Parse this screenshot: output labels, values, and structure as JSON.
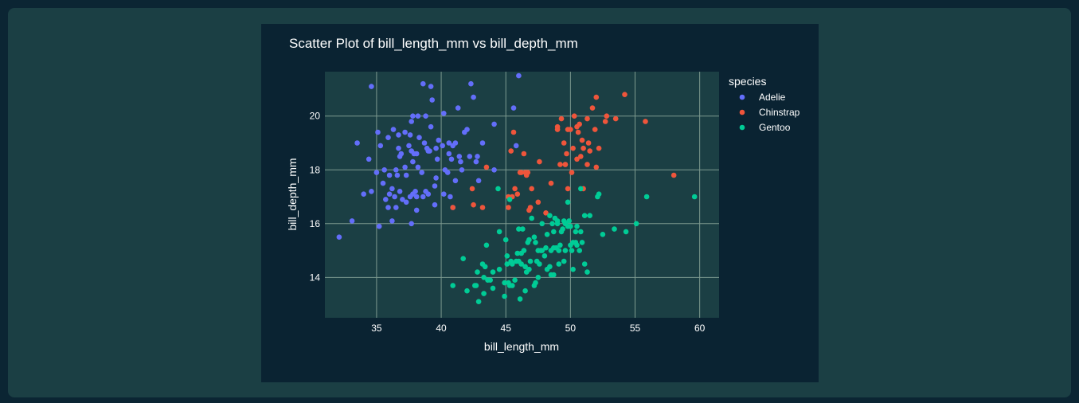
{
  "chart_data": {
    "type": "scatter",
    "title": "Scatter Plot of bill_length_mm vs bill_depth_mm",
    "xlabel": "bill_length_mm",
    "ylabel": "bill_depth_mm",
    "xlim": [
      31.0,
      61.5
    ],
    "ylim": [
      12.5,
      21.65
    ],
    "xticks": [
      35,
      40,
      45,
      50,
      55,
      60
    ],
    "yticks": [
      14,
      16,
      18,
      20
    ],
    "grid": true,
    "legend_title": "species",
    "legend_position": "right",
    "series": [
      {
        "name": "Adelie",
        "color": "#636efa",
        "points": [
          [
            32.1,
            15.5
          ],
          [
            33.1,
            16.1
          ],
          [
            33.5,
            19.0
          ],
          [
            34.0,
            17.1
          ],
          [
            34.4,
            18.4
          ],
          [
            34.6,
            21.1
          ],
          [
            34.6,
            17.2
          ],
          [
            35.0,
            17.9
          ],
          [
            35.1,
            19.4
          ],
          [
            35.2,
            15.9
          ],
          [
            35.3,
            18.9
          ],
          [
            35.5,
            17.5
          ],
          [
            35.6,
            18.0
          ],
          [
            35.7,
            16.9
          ],
          [
            35.9,
            16.6
          ],
          [
            35.9,
            19.2
          ],
          [
            36.0,
            17.8
          ],
          [
            36.0,
            17.1
          ],
          [
            36.2,
            17.3
          ],
          [
            36.2,
            16.1
          ],
          [
            36.3,
            19.5
          ],
          [
            36.4,
            17.0
          ],
          [
            36.5,
            18.0
          ],
          [
            36.5,
            16.6
          ],
          [
            36.6,
            17.8
          ],
          [
            36.7,
            19.3
          ],
          [
            36.7,
            18.8
          ],
          [
            36.8,
            18.5
          ],
          [
            36.9,
            18.6
          ],
          [
            37.0,
            16.9
          ],
          [
            37.2,
            18.1
          ],
          [
            37.2,
            19.4
          ],
          [
            37.3,
            17.8
          ],
          [
            37.3,
            16.8
          ],
          [
            37.5,
            18.9
          ],
          [
            37.6,
            17.0
          ],
          [
            37.6,
            19.3
          ],
          [
            37.7,
            18.7
          ],
          [
            37.7,
            16.0
          ],
          [
            37.8,
            17.1
          ],
          [
            37.8,
            18.3
          ],
          [
            37.8,
            20.0
          ],
          [
            37.9,
            18.6
          ],
          [
            38.1,
            18.6
          ],
          [
            38.1,
            17.0
          ],
          [
            38.1,
            16.5
          ],
          [
            38.2,
            18.1
          ],
          [
            38.2,
            20.0
          ],
          [
            38.3,
            19.2
          ],
          [
            38.5,
            17.9
          ],
          [
            38.6,
            21.2
          ],
          [
            38.6,
            17.0
          ],
          [
            38.7,
            19.0
          ],
          [
            38.8,
            17.2
          ],
          [
            38.8,
            20.0
          ],
          [
            38.9,
            18.8
          ],
          [
            39.0,
            17.1
          ],
          [
            39.0,
            18.7
          ],
          [
            39.1,
            18.7
          ],
          [
            39.2,
            19.6
          ],
          [
            39.2,
            21.1
          ],
          [
            39.3,
            20.6
          ],
          [
            39.5,
            17.4
          ],
          [
            39.5,
            16.7
          ],
          [
            39.6,
            17.7
          ],
          [
            39.6,
            18.8
          ],
          [
            39.7,
            18.4
          ],
          [
            39.8,
            19.1
          ],
          [
            40.1,
            18.9
          ],
          [
            40.2,
            17.1
          ],
          [
            40.2,
            20.1
          ],
          [
            40.3,
            18.0
          ],
          [
            40.5,
            17.9
          ],
          [
            40.6,
            18.6
          ],
          [
            40.6,
            19.0
          ],
          [
            40.7,
            17.0
          ],
          [
            40.8,
            18.4
          ],
          [
            40.9,
            16.6
          ],
          [
            41.1,
            17.6
          ],
          [
            41.1,
            19.0
          ],
          [
            41.3,
            20.3
          ],
          [
            41.4,
            18.5
          ],
          [
            41.5,
            18.3
          ],
          [
            41.6,
            18.0
          ],
          [
            41.8,
            19.4
          ],
          [
            42.0,
            19.5
          ],
          [
            42.2,
            18.5
          ],
          [
            42.3,
            21.2
          ],
          [
            42.5,
            20.7
          ],
          [
            42.7,
            18.3
          ],
          [
            42.8,
            18.5
          ],
          [
            42.9,
            17.6
          ],
          [
            43.2,
            19.0
          ],
          [
            44.1,
            19.7
          ],
          [
            44.1,
            18.0
          ],
          [
            45.6,
            20.3
          ],
          [
            45.8,
            18.9
          ],
          [
            46.0,
            21.5
          ],
          [
            37.7,
            19.8
          ],
          [
            38.0,
            17.2
          ],
          [
            36.8,
            17.2
          ],
          [
            40.9,
            18.9
          ]
        ]
      },
      {
        "name": "Chinstrap",
        "color": "#ef553b",
        "points": [
          [
            40.9,
            16.6
          ],
          [
            42.4,
            17.3
          ],
          [
            42.5,
            16.7
          ],
          [
            43.2,
            16.6
          ],
          [
            43.5,
            18.1
          ],
          [
            45.2,
            16.6
          ],
          [
            45.2,
            17.0
          ],
          [
            45.4,
            18.7
          ],
          [
            45.5,
            17.0
          ],
          [
            45.6,
            19.4
          ],
          [
            45.7,
            17.3
          ],
          [
            45.9,
            17.1
          ],
          [
            46.1,
            17.9
          ],
          [
            46.2,
            17.9
          ],
          [
            46.4,
            18.6
          ],
          [
            46.5,
            17.9
          ],
          [
            46.6,
            17.8
          ],
          [
            46.7,
            17.9
          ],
          [
            46.8,
            16.5
          ],
          [
            46.9,
            16.6
          ],
          [
            47.0,
            17.3
          ],
          [
            47.5,
            16.8
          ],
          [
            47.6,
            18.3
          ],
          [
            48.1,
            16.4
          ],
          [
            48.5,
            17.5
          ],
          [
            49.0,
            19.5
          ],
          [
            49.0,
            19.6
          ],
          [
            49.2,
            18.2
          ],
          [
            49.3,
            19.9
          ],
          [
            49.5,
            19.0
          ],
          [
            49.6,
            18.2
          ],
          [
            49.7,
            18.6
          ],
          [
            49.8,
            17.3
          ],
          [
            49.8,
            19.5
          ],
          [
            50.0,
            19.5
          ],
          [
            50.1,
            17.9
          ],
          [
            50.2,
            18.8
          ],
          [
            50.3,
            20.0
          ],
          [
            50.5,
            18.4
          ],
          [
            50.6,
            19.4
          ],
          [
            50.7,
            19.7
          ],
          [
            50.8,
            18.5
          ],
          [
            50.9,
            19.1
          ],
          [
            51.0,
            18.8
          ],
          [
            51.3,
            19.9
          ],
          [
            51.3,
            18.2
          ],
          [
            51.4,
            19.0
          ],
          [
            51.5,
            18.7
          ],
          [
            51.7,
            20.3
          ],
          [
            51.9,
            19.5
          ],
          [
            52.0,
            20.7
          ],
          [
            52.0,
            18.1
          ],
          [
            52.2,
            18.8
          ],
          [
            52.7,
            19.8
          ],
          [
            52.8,
            20.0
          ],
          [
            53.5,
            19.9
          ],
          [
            54.2,
            20.8
          ],
          [
            55.8,
            19.8
          ],
          [
            58.0,
            17.8
          ],
          [
            50.5,
            19.6
          ],
          [
            51.0,
            17.3
          ],
          [
            49.6,
            18.2
          ]
        ]
      },
      {
        "name": "Gentoo",
        "color": "#00cc96",
        "points": [
          [
            40.9,
            13.7
          ],
          [
            41.7,
            14.7
          ],
          [
            42.0,
            13.5
          ],
          [
            42.6,
            13.7
          ],
          [
            42.7,
            13.7
          ],
          [
            42.8,
            14.2
          ],
          [
            42.9,
            13.1
          ],
          [
            43.2,
            14.5
          ],
          [
            43.3,
            14.0
          ],
          [
            43.4,
            14.4
          ],
          [
            43.5,
            15.2
          ],
          [
            43.6,
            13.9
          ],
          [
            43.8,
            13.9
          ],
          [
            44.0,
            13.6
          ],
          [
            44.4,
            17.3
          ],
          [
            44.5,
            14.3
          ],
          [
            44.9,
            13.3
          ],
          [
            44.9,
            13.8
          ],
          [
            45.0,
            15.4
          ],
          [
            45.1,
            14.5
          ],
          [
            45.2,
            13.8
          ],
          [
            45.3,
            13.7
          ],
          [
            45.4,
            14.6
          ],
          [
            45.5,
            13.7
          ],
          [
            45.5,
            14.5
          ],
          [
            45.7,
            13.9
          ],
          [
            45.8,
            14.6
          ],
          [
            46.1,
            13.2
          ],
          [
            46.2,
            14.5
          ],
          [
            46.2,
            14.9
          ],
          [
            46.3,
            15.8
          ],
          [
            46.4,
            15.0
          ],
          [
            46.5,
            13.5
          ],
          [
            46.5,
            14.4
          ],
          [
            46.6,
            14.2
          ],
          [
            46.7,
            15.3
          ],
          [
            46.8,
            14.3
          ],
          [
            46.8,
            15.4
          ],
          [
            46.9,
            14.6
          ],
          [
            47.2,
            13.7
          ],
          [
            47.2,
            15.5
          ],
          [
            47.3,
            15.3
          ],
          [
            47.4,
            14.6
          ],
          [
            47.5,
            14.0
          ],
          [
            47.5,
            15.0
          ],
          [
            47.6,
            14.5
          ],
          [
            47.7,
            15.0
          ],
          [
            47.8,
            15.0
          ],
          [
            48.1,
            15.1
          ],
          [
            48.2,
            14.3
          ],
          [
            48.2,
            15.6
          ],
          [
            48.4,
            14.4
          ],
          [
            48.4,
            16.3
          ],
          [
            48.5,
            14.1
          ],
          [
            48.5,
            15.0
          ],
          [
            48.6,
            16.0
          ],
          [
            48.7,
            14.1
          ],
          [
            48.7,
            15.1
          ],
          [
            48.7,
            15.7
          ],
          [
            48.8,
            16.2
          ],
          [
            49.0,
            16.1
          ],
          [
            49.1,
            14.5
          ],
          [
            49.1,
            15.0
          ],
          [
            49.2,
            15.2
          ],
          [
            49.3,
            15.7
          ],
          [
            49.4,
            15.8
          ],
          [
            49.5,
            16.1
          ],
          [
            49.6,
            15.0
          ],
          [
            49.6,
            16.0
          ],
          [
            49.8,
            15.9
          ],
          [
            49.8,
            16.8
          ],
          [
            49.9,
            16.1
          ],
          [
            50.0,
            15.2
          ],
          [
            50.0,
            15.9
          ],
          [
            50.1,
            15.0
          ],
          [
            50.2,
            14.3
          ],
          [
            50.4,
            15.3
          ],
          [
            50.4,
            15.7
          ],
          [
            50.5,
            15.2
          ],
          [
            50.5,
            15.9
          ],
          [
            50.7,
            15.0
          ],
          [
            50.8,
            15.7
          ],
          [
            50.8,
            17.3
          ],
          [
            51.1,
            14.5
          ],
          [
            51.1,
            16.3
          ],
          [
            51.3,
            14.2
          ],
          [
            51.5,
            16.3
          ],
          [
            52.1,
            17.0
          ],
          [
            52.2,
            17.1
          ],
          [
            52.5,
            15.6
          ],
          [
            53.4,
            15.8
          ],
          [
            54.3,
            15.7
          ],
          [
            55.1,
            16.0
          ],
          [
            55.9,
            17.0
          ],
          [
            59.6,
            17.0
          ],
          [
            45.3,
            16.9
          ],
          [
            47.0,
            16.2
          ],
          [
            44.5,
            15.7
          ],
          [
            43.3,
            13.4
          ],
          [
            46.0,
            14.6
          ],
          [
            48.0,
            14.8
          ],
          [
            49.5,
            14.6
          ],
          [
            50.2,
            15.3
          ],
          [
            45.9,
            14.9
          ],
          [
            44.0,
            14.2
          ],
          [
            47.8,
            16.0
          ],
          [
            46.0,
            15.8
          ],
          [
            49.0,
            16.0
          ],
          [
            50.9,
            15.3
          ],
          [
            48.9,
            15.1
          ],
          [
            45.1,
            14.8
          ],
          [
            47.3,
            13.8
          ]
        ]
      }
    ]
  }
}
